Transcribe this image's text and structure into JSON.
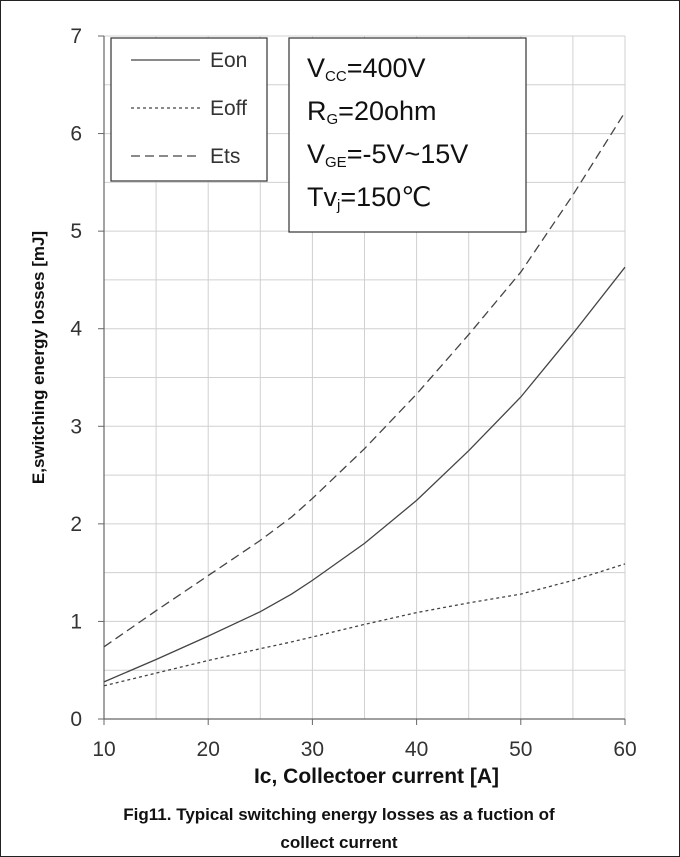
{
  "chart_data": {
    "type": "line",
    "title": "",
    "xlabel": "Ic, Collectoer current [A]",
    "ylabel": "E,switching energy losses [mJ]",
    "xlim": [
      10,
      60
    ],
    "ylim": [
      0,
      7
    ],
    "x_ticks": [
      "10",
      "20",
      "30",
      "40",
      "50",
      "60"
    ],
    "y_ticks": [
      "0",
      "1",
      "2",
      "3",
      "4",
      "5",
      "6",
      "7"
    ],
    "grid": true,
    "legend_position": "top-left",
    "x": [
      10,
      15,
      20,
      25,
      28,
      30,
      35,
      40,
      45,
      50,
      55,
      60
    ],
    "series": [
      {
        "name": "Eon",
        "dash": "solid",
        "values": [
          0.38,
          0.61,
          0.85,
          1.1,
          1.28,
          1.42,
          1.8,
          2.24,
          2.75,
          3.3,
          3.95,
          4.63
        ]
      },
      {
        "name": "Eoff",
        "dash": "dotted",
        "values": [
          0.34,
          0.47,
          0.6,
          0.72,
          0.79,
          0.84,
          0.97,
          1.09,
          1.19,
          1.28,
          1.42,
          1.59
        ]
      },
      {
        "name": "Ets",
        "dash": "dashed",
        "values": [
          0.74,
          1.11,
          1.47,
          1.83,
          2.07,
          2.26,
          2.77,
          3.33,
          3.94,
          4.58,
          5.37,
          6.22
        ]
      }
    ],
    "conditions": [
      {
        "main": "V",
        "sub": "CC",
        "rest": "=400V"
      },
      {
        "main": "R",
        "sub": "G",
        "rest": "=20ohm"
      },
      {
        "main": "V",
        "sub": "GE",
        "rest": "=-5V~15V"
      },
      {
        "main": "Tv",
        "sub": "j",
        "rest": "=150℃"
      }
    ],
    "caption_lines": [
      "Fig11. Typical switching energy losses as a fuction of",
      "collect current"
    ]
  }
}
